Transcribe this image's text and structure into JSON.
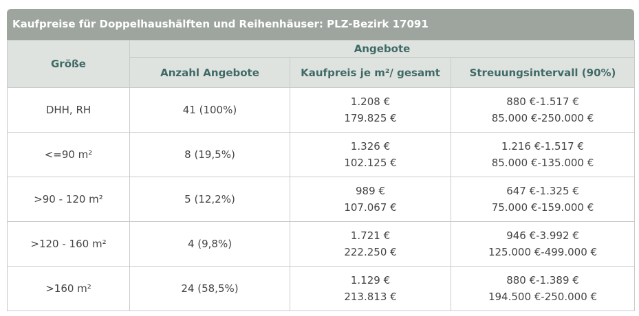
{
  "title": "Kaufpreise für Doppelhaushälften und Reihenhäuser: PLZ-Bezirk 17091",
  "table": {
    "group_header": "Angebote",
    "columns": [
      "Größe",
      "Anzahl Angebote",
      "Kaufpreis je m²/ gesamt",
      "Streuungsintervall (90%)"
    ],
    "rows": [
      [
        "DHH, RH",
        "41 (100%)",
        [
          "1.208 €",
          "179.825 €"
        ],
        [
          "880 €-1.517 €",
          "85.000 €-250.000 €"
        ]
      ],
      [
        "<=90 m²",
        "8 (19,5%)",
        [
          "1.326 €",
          "102.125 €"
        ],
        [
          "1.216 €-1.517 €",
          "85.000 €-135.000 €"
        ]
      ],
      [
        ">90 - 120 m²",
        "5 (12,2%)",
        [
          "989 €",
          "107.067 €"
        ],
        [
          "647 €-1.325 €",
          "75.000 €-159.000 €"
        ]
      ],
      [
        ">120 - 160 m²",
        "4 (9,8%)",
        [
          "1.721 €",
          "222.250 €"
        ],
        [
          "946 €-3.992 €",
          "125.000 €-499.000 €"
        ]
      ],
      [
        ">160 m²",
        "24 (58,5%)",
        [
          "1.129 €",
          "213.813 €"
        ],
        [
          "880 €-1.389 €",
          "194.500 €-250.000 €"
        ]
      ]
    ]
  }
}
